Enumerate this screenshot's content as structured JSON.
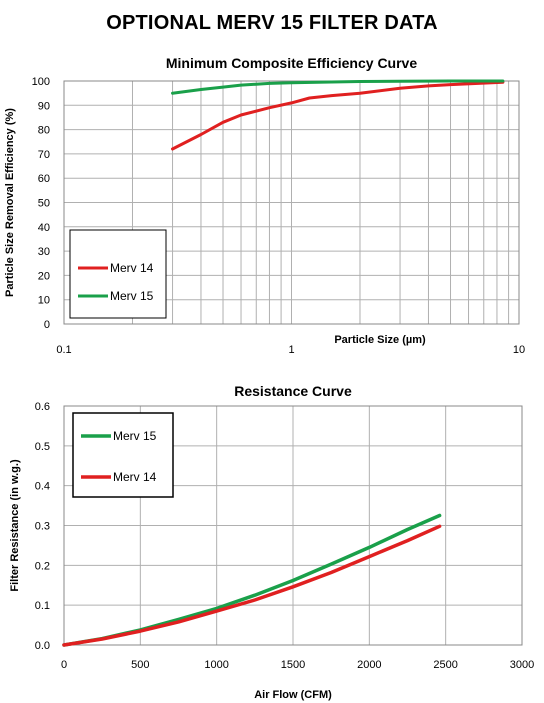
{
  "page_title": "OPTIONAL MERV 15 FILTER DATA",
  "colors": {
    "merv14": "#e02020",
    "merv15": "#1aa04a",
    "grid": "#b0b0b0",
    "frame": "#888888"
  },
  "chart_data": [
    {
      "type": "line",
      "title": "Minimum Composite Efficiency Curve",
      "xlabel": "Particle Size (µm)",
      "ylabel": "Particle Size Removal  Efficiency  (%)",
      "x_scale": "log",
      "xlim": [
        0.1,
        10
      ],
      "ylim": [
        0,
        100
      ],
      "x_ticks": [
        "0.1",
        "1",
        "10"
      ],
      "y_ticks": [
        "0",
        "10",
        "20",
        "30",
        "40",
        "50",
        "60",
        "70",
        "80",
        "90",
        "100"
      ],
      "grid": true,
      "legend_position": "bottom-left",
      "series": [
        {
          "name": "Merv 14",
          "x": [
            0.3,
            0.4,
            0.5,
            0.6,
            0.8,
            1.0,
            1.2,
            1.5,
            2.0,
            3.0,
            4.0,
            5.0,
            8.5
          ],
          "y": [
            72,
            78,
            83,
            86,
            89,
            91,
            93,
            94,
            95,
            97,
            98,
            98.5,
            99.5
          ]
        },
        {
          "name": "Merv 15",
          "x": [
            0.3,
            0.4,
            0.5,
            0.6,
            0.8,
            1.0,
            1.5,
            2.0,
            3.0,
            5.0,
            8.5
          ],
          "y": [
            95,
            96.5,
            97.5,
            98.3,
            99,
            99.3,
            99.6,
            99.8,
            99.9,
            100,
            100
          ]
        }
      ]
    },
    {
      "type": "line",
      "title": "Resistance Curve",
      "xlabel": "Air Flow (CFM)",
      "ylabel": "Filter Resistance  (in w.g.)",
      "xlim": [
        0,
        3000
      ],
      "ylim": [
        0,
        0.6
      ],
      "x_ticks": [
        "0",
        "500",
        "1000",
        "1500",
        "2000",
        "2500",
        "3000"
      ],
      "y_ticks": [
        "0.0",
        "0.1",
        "0.2",
        "0.3",
        "0.4",
        "0.5",
        "0.6"
      ],
      "grid": true,
      "legend_position": "top-left",
      "series": [
        {
          "name": "Merv 15",
          "x": [
            0,
            250,
            500,
            750,
            1000,
            1250,
            1500,
            1750,
            2000,
            2250,
            2460
          ],
          "y": [
            0,
            0.016,
            0.038,
            0.064,
            0.092,
            0.125,
            0.162,
            0.203,
            0.245,
            0.29,
            0.325
          ]
        },
        {
          "name": "Merv 14",
          "x": [
            0,
            250,
            500,
            750,
            1000,
            1250,
            1500,
            1750,
            2000,
            2250,
            2460
          ],
          "y": [
            0,
            0.015,
            0.035,
            0.058,
            0.085,
            0.113,
            0.146,
            0.182,
            0.222,
            0.262,
            0.298
          ]
        }
      ]
    }
  ]
}
